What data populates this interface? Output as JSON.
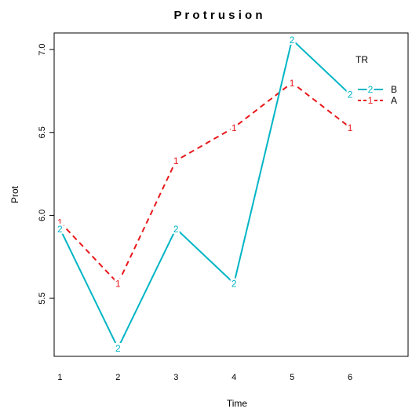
{
  "chart_data": {
    "type": "line",
    "title": "P r o t r u s i o n",
    "xlabel": "Time",
    "ylabel": "Prot",
    "x": [
      1,
      2,
      3,
      4,
      5,
      6
    ],
    "x_ticks": [
      "1",
      "2",
      "3",
      "4",
      "5",
      "6"
    ],
    "xlim": [
      0.9,
      7.0
    ],
    "ylim": [
      5.15,
      7.1
    ],
    "y_ticks": [
      5.5,
      6.0,
      6.5,
      7.0
    ],
    "y_tick_labels": [
      "5.5",
      "6.0",
      "6.5",
      "7.0"
    ],
    "grid": false,
    "legend": {
      "title": "TR",
      "position": "right",
      "entries": [
        {
          "label": "B",
          "marker": "2",
          "color": "#00B5C5",
          "linestyle": "solid"
        },
        {
          "label": "A",
          "marker": "1",
          "color": "#E8181B",
          "linestyle": "dashed"
        }
      ]
    },
    "series": [
      {
        "name": "A",
        "marker": "1",
        "color": "#E8181B",
        "linestyle": "dashed",
        "values": [
          5.96,
          5.59,
          6.33,
          6.53,
          6.8,
          6.53
        ]
      },
      {
        "name": "B",
        "marker": "2",
        "color": "#00B5C5",
        "linestyle": "solid",
        "values": [
          5.92,
          5.2,
          5.92,
          5.59,
          7.06,
          6.73
        ]
      }
    ]
  }
}
